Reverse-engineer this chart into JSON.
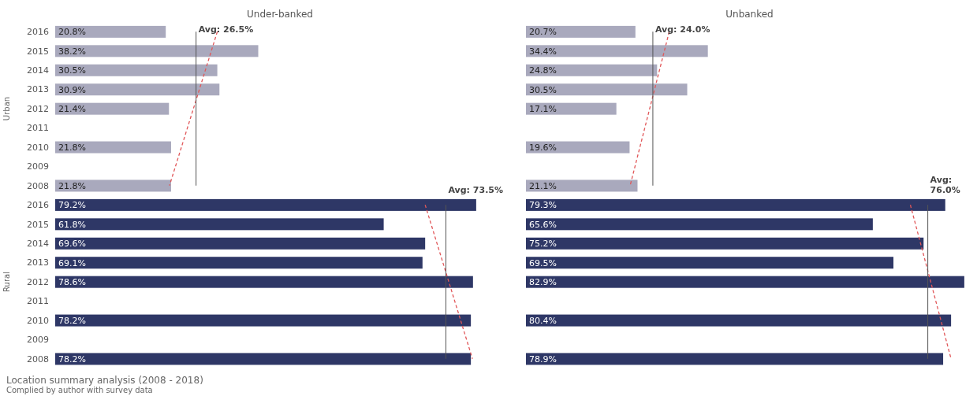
{
  "chart_data": [
    {
      "type": "bar",
      "orientation": "horizontal",
      "title": "Under-banked",
      "tick_labels": "y",
      "categories": [
        "2016",
        "2015",
        "2014",
        "2013",
        "2012",
        "2011",
        "2010",
        "2009",
        "2008",
        "2016",
        "2015",
        "2014",
        "2013",
        "2012",
        "2011",
        "2010",
        "2009",
        "2008"
      ],
      "annotations": [
        "Urban",
        "Rural"
      ],
      "series": [
        {
          "type": "bar",
          "values": [
            20.8,
            38.2,
            30.5,
            30.9,
            21.4,
            null,
            21.8,
            null,
            21.8,
            79.2,
            61.8,
            69.6,
            69.1,
            78.6,
            null,
            78.2,
            null,
            78.2
          ],
          "colors": [
            "#a9a9bd",
            "#a9a9bd",
            "#a9a9bd",
            "#a9a9bd",
            "#a9a9bd",
            null,
            "#a9a9bd",
            null,
            "#a9a9bd",
            "#2e3766",
            "#2e3766",
            "#2e3766",
            "#2e3766",
            "#2e3766",
            null,
            "#2e3766",
            null,
            "#2e3766"
          ],
          "value_labels": [
            "20.8%",
            "38.2%",
            "30.5%",
            "30.9%",
            "21.4%",
            null,
            "21.8%",
            null,
            "21.8%",
            "79.2%",
            "61.8%",
            "69.6%",
            "69.1%",
            "78.6%",
            null,
            "78.2%",
            null,
            "78.2%"
          ]
        },
        {
          "type": "line",
          "color": "#e15759",
          "line_style": "dashed",
          "values": [
            30.5,
            null,
            null,
            null,
            null,
            null,
            null,
            null,
            21.5,
            null,
            null,
            null,
            null,
            null,
            null,
            null,
            null,
            null
          ]
        },
        {
          "type": "line",
          "color": "#e15759",
          "line_style": "dashed",
          "values": [
            null,
            null,
            null,
            null,
            null,
            null,
            null,
            null,
            null,
            69.6,
            null,
            null,
            null,
            null,
            null,
            null,
            null,
            78.5
          ]
        }
      ],
      "ref_lines": [
        {
          "axis": "x",
          "value": 26.5,
          "label": "Avg: 26.5%",
          "color": "#555555"
        },
        {
          "axis": "x",
          "value": 73.5,
          "label": "Avg: 73.5%",
          "color": "#555555"
        }
      ]
    },
    {
      "type": "bar",
      "orientation": "horizontal",
      "title": "Unbanked",
      "tick_labels": false,
      "categories": [
        "2016",
        "2015",
        "2014",
        "2013",
        "2012",
        "2011",
        "2010",
        "2009",
        "2008",
        "2016",
        "2015",
        "2014",
        "2013",
        "2012",
        "2011",
        "2010",
        "2009",
        "2008"
      ],
      "series": [
        {
          "type": "bar",
          "values": [
            20.7,
            34.4,
            24.8,
            30.5,
            17.1,
            null,
            19.6,
            null,
            21.1,
            79.3,
            65.6,
            75.2,
            69.5,
            82.9,
            null,
            80.4,
            null,
            78.9
          ],
          "colors": [
            "#a9a9bd",
            "#a9a9bd",
            "#a9a9bd",
            "#a9a9bd",
            "#a9a9bd",
            null,
            "#a9a9bd",
            null,
            "#a9a9bd",
            "#2e3766",
            "#2e3766",
            "#2e3766",
            "#2e3766",
            "#2e3766",
            null,
            "#2e3766",
            null,
            "#2e3766"
          ],
          "value_labels": [
            "20.7%",
            "34.4%",
            "24.8%",
            "30.5%",
            "17.1%",
            null,
            "19.6%",
            null,
            "21.1%",
            "79.3%",
            "65.6%",
            "75.2%",
            "69.5%",
            "82.9%",
            null,
            "80.4%",
            null,
            "78.9%"
          ]
        },
        {
          "type": "line",
          "color": "#e15759",
          "line_style": "dashed",
          "values": [
            27.1,
            null,
            null,
            null,
            null,
            null,
            null,
            null,
            19.7,
            null,
            null,
            null,
            null,
            null,
            null,
            null,
            null,
            null
          ]
        },
        {
          "type": "line",
          "color": "#e15759",
          "line_style": "dashed",
          "values": [
            null,
            null,
            null,
            null,
            null,
            null,
            null,
            null,
            null,
            72.7,
            null,
            null,
            null,
            null,
            null,
            null,
            null,
            80.4
          ]
        }
      ],
      "ref_lines": [
        {
          "axis": "x",
          "value": 24.0,
          "label": "Avg: 24.0%",
          "color": "#555555"
        },
        {
          "axis": "x",
          "value": 76.0,
          "label": "Avg: 76.0%",
          "color": "#555555"
        }
      ]
    },
    {
      "type": "other",
      "title": "Location summary analysis (2008 - 2018)",
      "annotations": [
        "Complied by author with survey data"
      ]
    }
  ]
}
